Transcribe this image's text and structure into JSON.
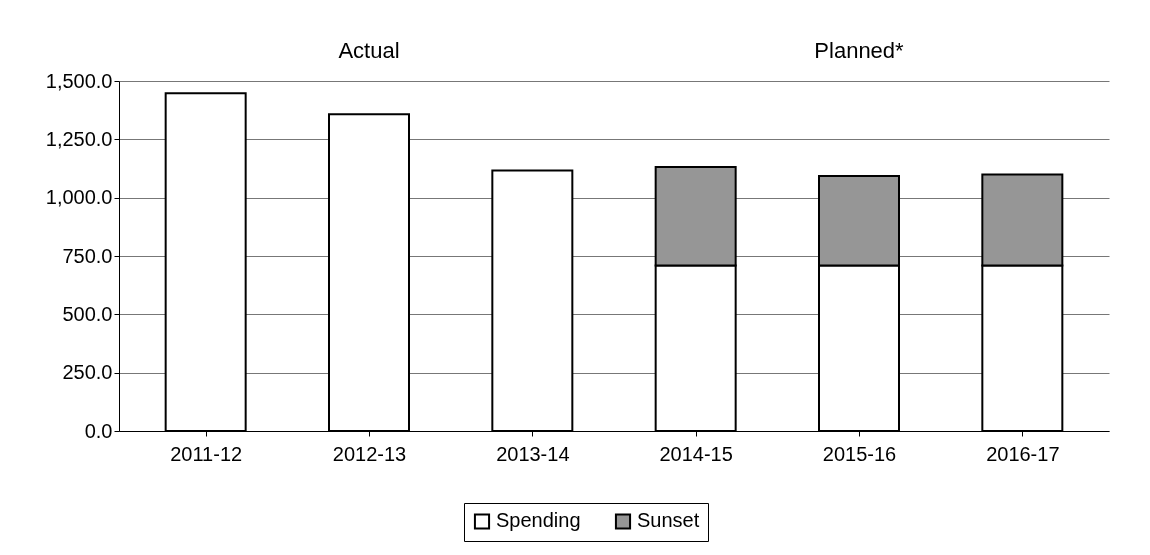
{
  "chart_data": {
    "type": "bar",
    "stacked": true,
    "categories": [
      "2011-12",
      "2012-13",
      "2013-14",
      "2014-15",
      "2015-16",
      "2016-17"
    ],
    "series": [
      {
        "name": "Spending",
        "color": "#ffffff",
        "values": [
          1447,
          1357,
          1116,
          709,
          709,
          709
        ]
      },
      {
        "name": "Sunset",
        "color": "#969696",
        "values": [
          null,
          null,
          null,
          422,
          384,
          390
        ]
      }
    ],
    "ylim": [
      0,
      1500
    ],
    "yticks": [
      {
        "value": 0,
        "label": "0.0"
      },
      {
        "value": 250,
        "label": "250.0"
      },
      {
        "value": 500,
        "label": "500.0"
      },
      {
        "value": 750,
        "label": "750.0"
      },
      {
        "value": 1000,
        "label": "1,000.0"
      },
      {
        "value": 1250,
        "label": "1,250.0"
      },
      {
        "value": 1500,
        "label": "1,500.0"
      }
    ],
    "annotations": [
      "Actual",
      "Planned*"
    ],
    "grid": "y",
    "legend": "bottom"
  }
}
